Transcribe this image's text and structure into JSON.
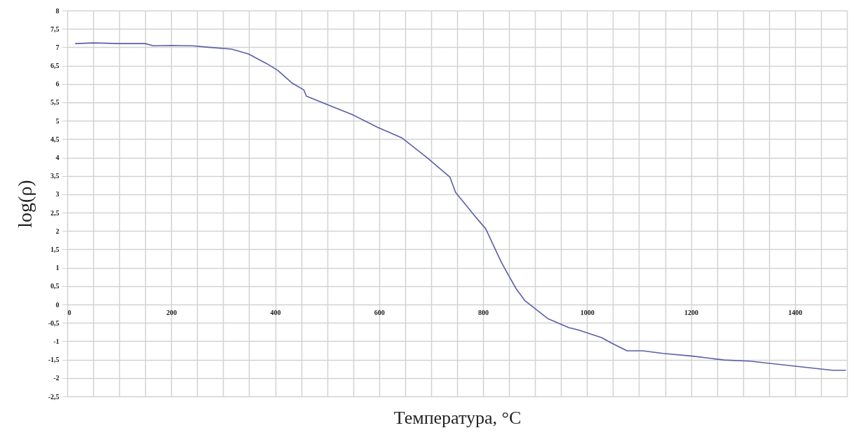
{
  "chart_data": {
    "type": "line",
    "xlabel": "Температура, °C",
    "ylabel": "log(ρ)",
    "xlim": [
      0,
      1500
    ],
    "ylim": [
      -2.5,
      8
    ],
    "xticks": [
      0,
      {
        "value": 50,
        "label": null
      },
      {
        "value": 100,
        "label": null
      },
      {
        "value": 150,
        "label": null
      },
      200,
      {
        "value": 250,
        "label": null
      },
      {
        "value": 300,
        "label": null
      },
      {
        "value": 350,
        "label": null
      },
      400,
      {
        "value": 450,
        "label": null
      },
      {
        "value": 500,
        "label": null
      },
      {
        "value": 550,
        "label": null
      },
      600,
      {
        "value": 650,
        "label": null
      },
      {
        "value": 700,
        "label": null
      },
      {
        "value": 750,
        "label": null
      },
      800,
      {
        "value": 850,
        "label": null
      },
      {
        "value": 900,
        "label": null
      },
      {
        "value": 950,
        "label": null
      },
      1000,
      {
        "value": 1050,
        "label": null
      },
      {
        "value": 1100,
        "label": null
      },
      {
        "value": 1150,
        "label": null
      },
      1200,
      {
        "value": 1250,
        "label": null
      },
      {
        "value": 1300,
        "label": null
      },
      {
        "value": 1350,
        "label": null
      },
      1400,
      {
        "value": 1450,
        "label": null
      },
      {
        "value": 1500,
        "label": null
      }
    ],
    "yticks": [
      {
        "value": -2.5,
        "label": "-2,5"
      },
      -2,
      {
        "value": -1.5,
        "label": "-1,5"
      },
      -1,
      {
        "value": -0.5,
        "label": "-0,5"
      },
      0,
      {
        "value": 0.5,
        "label": "0,5"
      },
      1,
      {
        "value": 1.5,
        "label": "1,5"
      },
      2,
      {
        "value": 2.5,
        "label": "2,5"
      },
      3,
      {
        "value": 3.5,
        "label": "3,5"
      },
      4,
      {
        "value": 4.5,
        "label": "4,5"
      },
      5,
      {
        "value": 5.5,
        "label": "5,5"
      },
      6,
      {
        "value": 6.5,
        "label": "6,5"
      },
      7,
      {
        "value": 7.5,
        "label": "7,5"
      },
      8
    ],
    "grid": true,
    "marker": "none",
    "line_style": "solid",
    "x": [
      16,
      50,
      100,
      150,
      165,
      200,
      241,
      272,
      316,
      348,
      383,
      405,
      432,
      455,
      460,
      504,
      548,
      597,
      643,
      692,
      736,
      747,
      785,
      805,
      835,
      863,
      880,
      924,
      965,
      983,
      1028,
      1047,
      1077,
      1107,
      1146,
      1200,
      1264,
      1313,
      1383,
      1447,
      1472,
      1497
    ],
    "series": [
      {
        "color": "#5a5fa8",
        "values": [
          7.1,
          7.12,
          7.1,
          7.1,
          7.04,
          7.05,
          7.04,
          7.0,
          6.95,
          6.82,
          6.56,
          6.37,
          6.03,
          5.84,
          5.67,
          5.42,
          5.17,
          4.82,
          4.54,
          4.0,
          3.47,
          3.05,
          2.39,
          2.06,
          1.15,
          0.44,
          0.11,
          -0.38,
          -0.63,
          -0.69,
          -0.9,
          -1.05,
          -1.26,
          -1.26,
          -1.33,
          -1.4,
          -1.51,
          -1.54,
          -1.65,
          -1.75,
          -1.79,
          -1.79
        ]
      }
    ]
  }
}
